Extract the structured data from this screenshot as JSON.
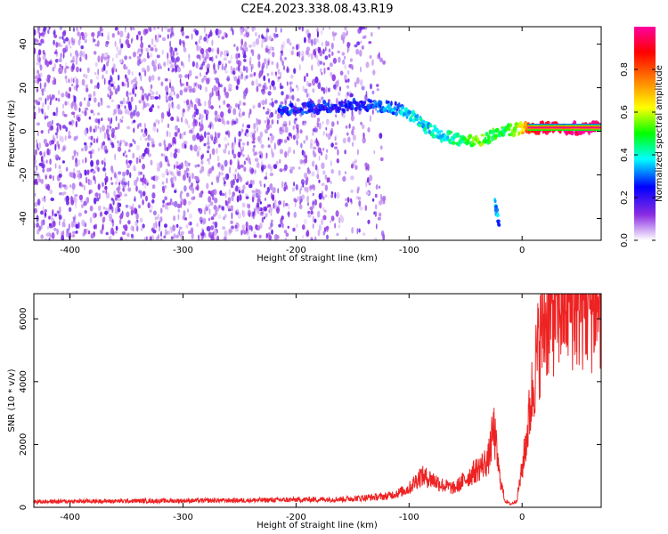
{
  "figure": {
    "title": "C2E4.2023.338.08.43.R19"
  },
  "chart_data": [
    {
      "type": "heatmap",
      "xlabel": "Height of straight line (km)",
      "ylabel": "Frequency (Hz)",
      "xlim": [
        -432,
        70
      ],
      "ylim": [
        -50,
        48
      ],
      "xticks": [
        -400,
        -300,
        -200,
        -100,
        0
      ],
      "yticks": [
        -40,
        -20,
        0,
        20,
        40
      ],
      "colorbar": {
        "label": "Normalized spectral amplitude",
        "range": [
          0.0,
          1.0
        ],
        "ticks": [
          0.0,
          0.2,
          0.4,
          0.6,
          0.8
        ],
        "tick_labels": [
          "0.0",
          "0.2",
          "0.4",
          "0.6",
          "0.8"
        ],
        "colormap": [
          "#ffffff",
          "#8a2be2",
          "#0000ff",
          "#00ffff",
          "#00ff00",
          "#ffff00",
          "#ff8000",
          "#ff0000",
          "#ff00a0"
        ]
      },
      "noise_region": {
        "x": [
          -432,
          -122
        ],
        "y": [
          -50,
          48
        ],
        "level": 0.12
      },
      "ridge": [
        {
          "x": -215,
          "y": 10,
          "level": 0.25
        },
        {
          "x": -180,
          "y": 11,
          "level": 0.22
        },
        {
          "x": -140,
          "y": 12,
          "level": 0.25
        },
        {
          "x": -115,
          "y": 11,
          "level": 0.3
        },
        {
          "x": -100,
          "y": 8,
          "level": 0.35
        },
        {
          "x": -85,
          "y": 2,
          "level": 0.38
        },
        {
          "x": -70,
          "y": -2,
          "level": 0.4
        },
        {
          "x": -55,
          "y": -4,
          "level": 0.42
        },
        {
          "x": -40,
          "y": -5,
          "level": 0.55
        },
        {
          "x": -30,
          "y": -3,
          "level": 0.5
        },
        {
          "x": -20,
          "y": -1,
          "level": 0.45
        },
        {
          "x": -10,
          "y": 1,
          "level": 0.5
        },
        {
          "x": 0,
          "y": 1,
          "level": 0.65
        },
        {
          "x": 10,
          "y": 1.5,
          "level": 0.9
        },
        {
          "x": 70,
          "y": 1.5,
          "level": 1.0
        }
      ],
      "tail": [
        {
          "x": -24,
          "y": -32,
          "level": 0.3
        },
        {
          "x": -22,
          "y": -38,
          "level": 0.35
        },
        {
          "x": -20,
          "y": -44,
          "level": 0.25
        }
      ]
    },
    {
      "type": "line",
      "xlabel": "Height of straight line (km)",
      "ylabel": "SNR (10 * v/v)",
      "xlim": [
        -432,
        70
      ],
      "ylim": [
        0,
        6800
      ],
      "xticks": [
        -400,
        -300,
        -200,
        -100,
        0
      ],
      "yticks": [
        0,
        2000,
        4000,
        6000
      ],
      "color": "#ee2222",
      "series": [
        {
          "x": [
            -432,
            -400,
            -350,
            -300,
            -250,
            -200,
            -160,
            -140,
            -120,
            -110,
            -100,
            -90,
            -80,
            -70,
            -60,
            -50,
            -40,
            -30,
            -25,
            -20,
            -15,
            -10,
            -5,
            0,
            5,
            10,
            15,
            20,
            30,
            40,
            50,
            60,
            70
          ],
          "y": [
            180,
            190,
            200,
            210,
            220,
            240,
            260,
            300,
            350,
            450,
            600,
            1000,
            900,
            700,
            600,
            900,
            1200,
            1500,
            2500,
            1000,
            200,
            100,
            200,
            1200,
            2500,
            4000,
            5200,
            6000,
            6400,
            6600,
            6550,
            6500,
            6500
          ]
        }
      ]
    }
  ]
}
